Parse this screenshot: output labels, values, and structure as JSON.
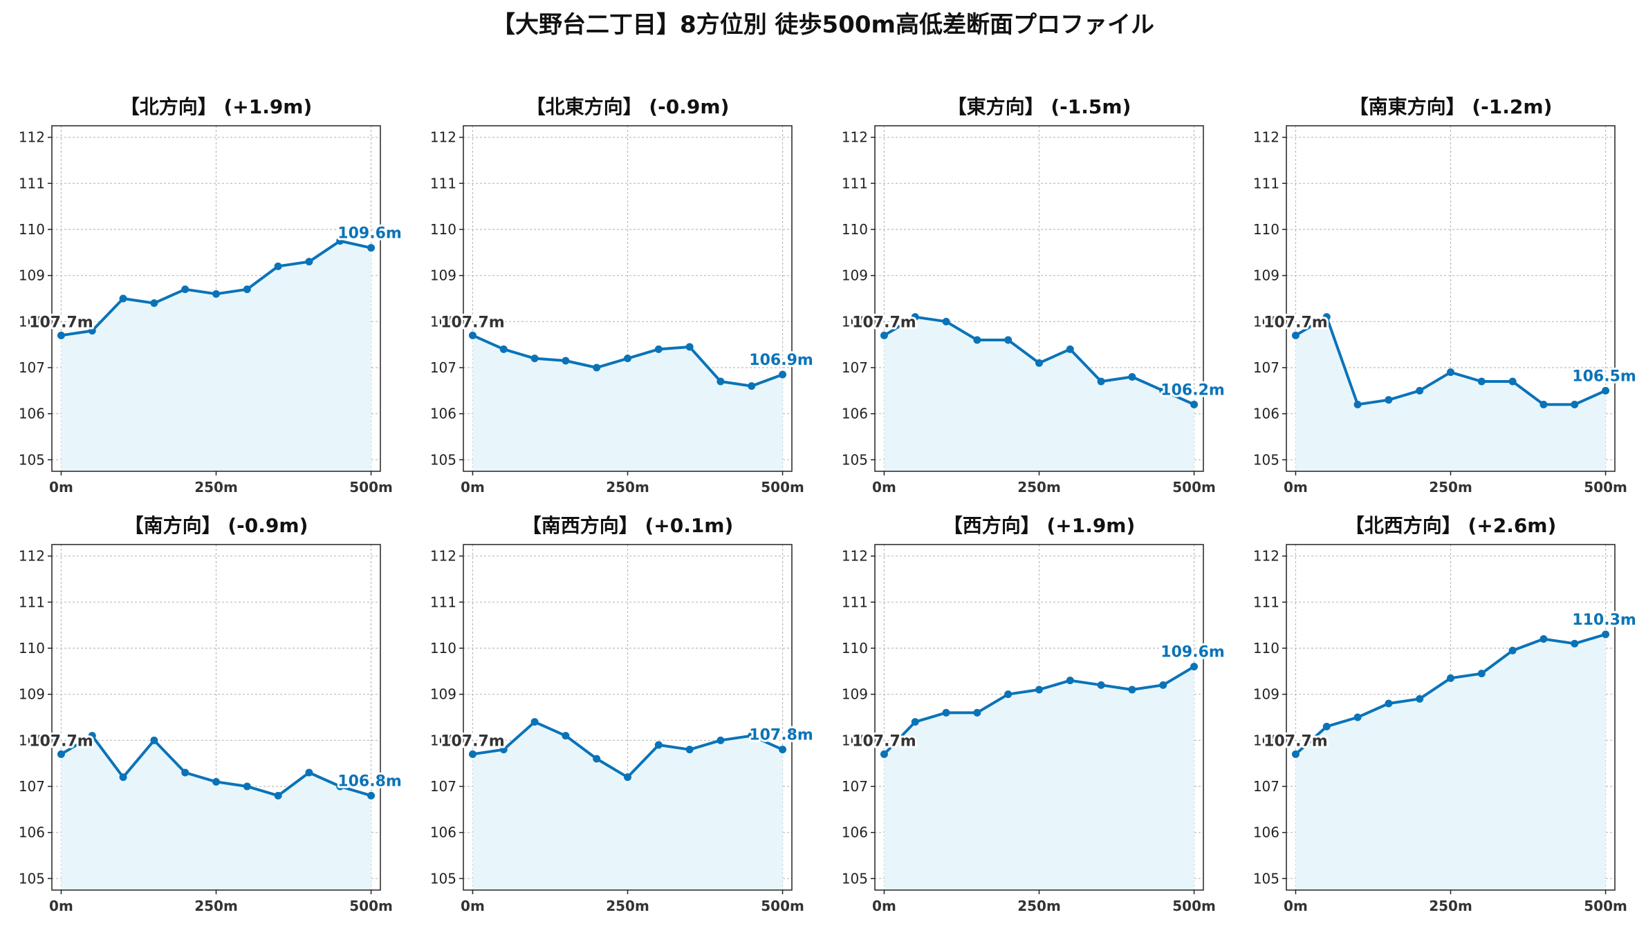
{
  "title": "【大野台二丁目】8方位別 徒歩500m高低差断面プロファイル",
  "colors": {
    "line": "#0a73b8",
    "fill": "#e8f6fc",
    "start_label": "#333333",
    "end_label": "#0a73b8",
    "grid": "#bbbbbb"
  },
  "chart_data": [
    {
      "type": "area",
      "title": "【北方向】 (+1.9m)",
      "x": [
        0,
        50,
        100,
        150,
        200,
        250,
        300,
        350,
        400,
        450,
        500
      ],
      "y": [
        107.7,
        107.8,
        108.5,
        108.4,
        108.7,
        108.6,
        108.7,
        109.2,
        109.3,
        109.75,
        109.6
      ],
      "xticks": [
        "0m",
        "250m",
        "500m"
      ],
      "yticks": [
        105,
        106,
        107,
        108,
        109,
        110,
        111,
        112
      ],
      "ylim": [
        104.75,
        112.25
      ],
      "xlim": [
        -15,
        515
      ],
      "start_label": "107.7m",
      "end_label": "109.6m",
      "grid": true
    },
    {
      "type": "area",
      "title": "【北東方向】 (-0.9m)",
      "x": [
        0,
        50,
        100,
        150,
        200,
        250,
        300,
        350,
        400,
        450,
        500
      ],
      "y": [
        107.7,
        107.4,
        107.2,
        107.15,
        107.0,
        107.2,
        107.4,
        107.45,
        106.7,
        106.6,
        106.85
      ],
      "xticks": [
        "0m",
        "250m",
        "500m"
      ],
      "yticks": [
        105,
        106,
        107,
        108,
        109,
        110,
        111,
        112
      ],
      "ylim": [
        104.75,
        112.25
      ],
      "xlim": [
        -15,
        515
      ],
      "start_label": "107.7m",
      "end_label": "106.9m",
      "grid": true
    },
    {
      "type": "area",
      "title": "【東方向】 (-1.5m)",
      "x": [
        0,
        50,
        100,
        150,
        200,
        250,
        300,
        350,
        400,
        450,
        500
      ],
      "y": [
        107.7,
        108.1,
        108.0,
        107.6,
        107.6,
        107.1,
        107.4,
        106.7,
        106.8,
        106.5,
        106.2
      ],
      "xticks": [
        "0m",
        "250m",
        "500m"
      ],
      "yticks": [
        105,
        106,
        107,
        108,
        109,
        110,
        111,
        112
      ],
      "ylim": [
        104.75,
        112.25
      ],
      "xlim": [
        -15,
        515
      ],
      "start_label": "107.7m",
      "end_label": "106.2m",
      "grid": true
    },
    {
      "type": "area",
      "title": "【南東方向】 (-1.2m)",
      "x": [
        0,
        50,
        100,
        150,
        200,
        250,
        300,
        350,
        400,
        450,
        500
      ],
      "y": [
        107.7,
        108.1,
        106.2,
        106.3,
        106.5,
        106.9,
        106.7,
        106.7,
        106.2,
        106.2,
        106.5
      ],
      "xticks": [
        "0m",
        "250m",
        "500m"
      ],
      "yticks": [
        105,
        106,
        107,
        108,
        109,
        110,
        111,
        112
      ],
      "ylim": [
        104.75,
        112.25
      ],
      "xlim": [
        -15,
        515
      ],
      "start_label": "107.7m",
      "end_label": "106.5m",
      "grid": true
    },
    {
      "type": "area",
      "title": "【南方向】 (-0.9m)",
      "x": [
        0,
        50,
        100,
        150,
        200,
        250,
        300,
        350,
        400,
        450,
        500
      ],
      "y": [
        107.7,
        108.1,
        107.2,
        108.0,
        107.3,
        107.1,
        107.0,
        106.8,
        107.3,
        107.0,
        106.8
      ],
      "xticks": [
        "0m",
        "250m",
        "500m"
      ],
      "yticks": [
        105,
        106,
        107,
        108,
        109,
        110,
        111,
        112
      ],
      "ylim": [
        104.75,
        112.25
      ],
      "xlim": [
        -15,
        515
      ],
      "start_label": "107.7m",
      "end_label": "106.8m",
      "grid": true
    },
    {
      "type": "area",
      "title": "【南西方向】 (+0.1m)",
      "x": [
        0,
        50,
        100,
        150,
        200,
        250,
        300,
        350,
        400,
        450,
        500
      ],
      "y": [
        107.7,
        107.8,
        108.4,
        108.1,
        107.6,
        107.2,
        107.9,
        107.8,
        108.0,
        108.1,
        107.8
      ],
      "xticks": [
        "0m",
        "250m",
        "500m"
      ],
      "yticks": [
        105,
        106,
        107,
        108,
        109,
        110,
        111,
        112
      ],
      "ylim": [
        104.75,
        112.25
      ],
      "xlim": [
        -15,
        515
      ],
      "start_label": "107.7m",
      "end_label": "107.8m",
      "grid": true
    },
    {
      "type": "area",
      "title": "【西方向】 (+1.9m)",
      "x": [
        0,
        50,
        100,
        150,
        200,
        250,
        300,
        350,
        400,
        450,
        500
      ],
      "y": [
        107.7,
        108.4,
        108.6,
        108.6,
        109.0,
        109.1,
        109.3,
        109.2,
        109.1,
        109.2,
        109.6
      ],
      "xticks": [
        "0m",
        "250m",
        "500m"
      ],
      "yticks": [
        105,
        106,
        107,
        108,
        109,
        110,
        111,
        112
      ],
      "ylim": [
        104.75,
        112.25
      ],
      "xlim": [
        -15,
        515
      ],
      "start_label": "107.7m",
      "end_label": "109.6m",
      "grid": true
    },
    {
      "type": "area",
      "title": "【北西方向】 (+2.6m)",
      "x": [
        0,
        50,
        100,
        150,
        200,
        250,
        300,
        350,
        400,
        450,
        500
      ],
      "y": [
        107.7,
        108.3,
        108.5,
        108.8,
        108.9,
        109.35,
        109.45,
        109.95,
        110.2,
        110.1,
        110.3
      ],
      "xticks": [
        "0m",
        "250m",
        "500m"
      ],
      "yticks": [
        105,
        106,
        107,
        108,
        109,
        110,
        111,
        112
      ],
      "ylim": [
        104.75,
        112.25
      ],
      "xlim": [
        -15,
        515
      ],
      "start_label": "107.7m",
      "end_label": "110.3m",
      "grid": true
    }
  ]
}
